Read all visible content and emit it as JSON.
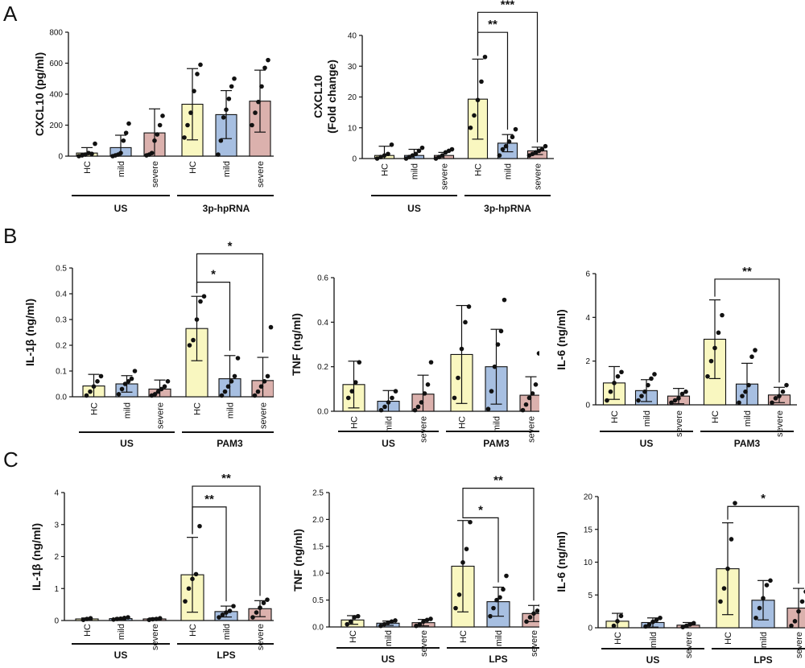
{
  "panel_letters": {
    "a": "A",
    "b": "B",
    "c": "C"
  },
  "colors": {
    "HC": "#f9f7c0",
    "mild": "#a7bfe1",
    "severe": "#dbb1ad",
    "ink": "#111111"
  },
  "chart_data": [
    {
      "type": "bar",
      "title": "",
      "xlabel": "",
      "ylabel": [
        "CXCL10 (pg/ml)"
      ],
      "ylim": [
        0,
        800
      ],
      "yticks": [
        0,
        200,
        400,
        600,
        800
      ],
      "ytick_labels": [
        "0",
        "200",
        "400",
        "600",
        "800"
      ],
      "grid": false,
      "legend": "none",
      "categories": [
        "HC",
        "mild",
        "severe",
        "HC",
        "mild",
        "severe"
      ],
      "groups": [
        "US",
        "3p-hpRNA"
      ],
      "values": [
        20,
        55,
        150,
        335,
        268,
        355
      ],
      "errors": [
        35,
        80,
        155,
        230,
        155,
        200
      ],
      "points": [
        [
          0,
          5,
          10,
          20,
          15,
          80
        ],
        [
          0,
          5,
          10,
          20,
          100,
          150,
          210
        ],
        [
          5,
          10,
          20,
          100,
          140,
          200,
          260
        ],
        [
          120,
          200,
          280,
          420,
          530,
          590
        ],
        [
          10,
          100,
          250,
          300,
          370,
          450,
          500
        ],
        [
          200,
          280,
          350,
          450,
          570,
          620
        ]
      ],
      "significance": []
    },
    {
      "type": "bar",
      "title": "",
      "xlabel": "",
      "ylabel": [
        "CXCL10",
        "(Fold change)"
      ],
      "ylim": [
        0,
        40
      ],
      "yticks": [
        0,
        10,
        20,
        30,
        40
      ],
      "ytick_labels": [
        "0",
        "10",
        "20",
        "30",
        "40"
      ],
      "grid": false,
      "legend": "none",
      "categories": [
        "HC",
        "mild",
        "severe",
        "HC",
        "mild",
        "severe"
      ],
      "groups": [
        "US",
        "3p-hpRNA"
      ],
      "values": [
        1,
        1,
        1,
        19.3,
        5,
        2.5
      ],
      "errors": [
        3,
        2,
        1,
        13,
        2.8,
        1.2
      ],
      "points": [
        [
          0,
          0.5,
          1,
          1.5,
          4.5
        ],
        [
          0,
          0.5,
          1,
          1.5,
          2.5,
          3.5
        ],
        [
          0,
          0.5,
          1,
          2,
          2.5,
          3
        ],
        [
          10,
          14,
          19,
          25,
          33
        ],
        [
          1,
          3,
          4,
          5.5,
          7,
          9.5
        ],
        [
          1,
          1.5,
          2,
          2.5,
          3,
          4
        ]
      ],
      "significance": [
        {
          "from": 3,
          "to": 4,
          "label": "**",
          "level": 41
        },
        {
          "from": 3,
          "to": 5,
          "label": "***",
          "level": 47.5
        }
      ]
    },
    {
      "type": "bar",
      "title": "",
      "xlabel": "",
      "ylabel": [
        "IL-1β (ng/ml)"
      ],
      "ylim": [
        0,
        0.5
      ],
      "yticks": [
        0,
        0.1,
        0.2,
        0.3,
        0.4,
        0.5
      ],
      "ytick_labels": [
        "0.0",
        "0.1",
        "0.2",
        "0.3",
        "0.4",
        "0.5"
      ],
      "grid": false,
      "legend": "none",
      "categories": [
        "HC",
        "mild",
        "severe",
        "HC",
        "mild",
        "severe"
      ],
      "groups": [
        "US",
        "PAM3"
      ],
      "values": [
        0.042,
        0.05,
        0.03,
        0.265,
        0.07,
        0.063
      ],
      "errors": [
        0.045,
        0.032,
        0.035,
        0.125,
        0.09,
        0.09
      ],
      "points": [
        [
          0.005,
          0.02,
          0.04,
          0.06,
          0.08
        ],
        [
          0.01,
          0.03,
          0.05,
          0.06,
          0.07,
          0.1
        ],
        [
          0.005,
          0.01,
          0.02,
          0.03,
          0.04,
          0.06
        ],
        [
          0.2,
          0.22,
          0.3,
          0.37,
          0.39
        ],
        [
          0.005,
          0.02,
          0.04,
          0.06,
          0.08,
          0.15
        ],
        [
          0.005,
          0.02,
          0.04,
          0.06,
          0.08,
          0.27
        ]
      ],
      "significance": [
        {
          "from": 3,
          "to": 4,
          "label": "*",
          "level": 0.445
        },
        {
          "from": 3,
          "to": 5,
          "label": "*",
          "level": 0.555
        }
      ]
    },
    {
      "type": "bar",
      "title": "",
      "xlabel": "",
      "ylabel": [
        "TNF (ng/ml)"
      ],
      "ylim": [
        0,
        0.6
      ],
      "yticks": [
        0,
        0.2,
        0.4,
        0.6
      ],
      "ytick_labels": [
        "0.0",
        "0.2",
        "0.4",
        "0.6"
      ],
      "grid": false,
      "legend": "none",
      "categories": [
        "HC",
        "mild",
        "severe",
        "HC",
        "mild",
        "severe"
      ],
      "groups": [
        "US",
        "PAM3"
      ],
      "values": [
        0.12,
        0.045,
        0.077,
        0.255,
        0.2,
        0.072
      ],
      "errors": [
        0.105,
        0.048,
        0.085,
        0.22,
        0.168,
        0.083
      ],
      "points": [
        [
          0.06,
          0.09,
          0.13,
          0.22
        ],
        [
          0.005,
          0.02,
          0.04,
          0.06,
          0.09
        ],
        [
          0.005,
          0.02,
          0.04,
          0.08,
          0.12,
          0.22
        ],
        [
          0.06,
          0.15,
          0.28,
          0.4,
          0.47
        ],
        [
          0.01,
          0.09,
          0.2,
          0.3,
          0.36,
          0.5
        ],
        [
          0.005,
          0.03,
          0.06,
          0.08,
          0.12,
          0.26
        ]
      ],
      "significance": []
    },
    {
      "type": "bar",
      "title": "",
      "xlabel": "",
      "ylabel": [
        "IL-6 (ng/ml)"
      ],
      "ylim": [
        0,
        6
      ],
      "yticks": [
        0,
        2,
        4,
        6
      ],
      "ytick_labels": [
        "0",
        "2",
        "4",
        "6"
      ],
      "grid": false,
      "legend": "none",
      "categories": [
        "HC",
        "mild",
        "severe",
        "HC",
        "mild",
        "severe"
      ],
      "groups": [
        "US",
        "PAM3"
      ],
      "values": [
        1,
        0.65,
        0.4,
        3,
        0.95,
        0.45
      ],
      "errors": [
        0.75,
        0.5,
        0.35,
        1.8,
        0.95,
        0.35
      ],
      "points": [
        [
          0.2,
          0.6,
          1,
          1.3,
          1.5
        ],
        [
          0.2,
          0.4,
          0.6,
          0.9,
          1.2,
          1.4
        ],
        [
          0.1,
          0.2,
          0.3,
          0.5,
          0.6
        ],
        [
          1.3,
          2,
          2.6,
          3.3,
          4.1
        ],
        [
          0.1,
          0.4,
          0.6,
          0.9,
          2.2,
          2.5
        ],
        [
          0.1,
          0.3,
          0.4,
          0.6,
          0.9
        ]
      ],
      "significance": [
        {
          "from": 3,
          "to": 5,
          "label": "**",
          "level": 5.75
        }
      ]
    },
    {
      "type": "bar",
      "title": "",
      "xlabel": "",
      "ylabel": [
        "IL-1β (ng/ml)"
      ],
      "ylim": [
        0,
        4
      ],
      "yticks": [
        0,
        1,
        2,
        3,
        4
      ],
      "ytick_labels": [
        "0",
        "1",
        "2",
        "3",
        "4"
      ],
      "grid": false,
      "legend": "none",
      "categories": [
        "HC",
        "mild",
        "severe",
        "HC",
        "mild",
        "severe"
      ],
      "groups": [
        "US",
        "LPS"
      ],
      "values": [
        0.05,
        0.06,
        0.05,
        1.43,
        0.28,
        0.37
      ],
      "errors": [
        0.03,
        0.03,
        0.03,
        1.17,
        0.17,
        0.25
      ],
      "points": [
        [
          0.02,
          0.05,
          0.07
        ],
        [
          0.03,
          0.05,
          0.06,
          0.08,
          0.1
        ],
        [
          0.02,
          0.04,
          0.05,
          0.07
        ],
        [
          0.6,
          1,
          1.3,
          1.45,
          2.95
        ],
        [
          0.1,
          0.18,
          0.25,
          0.3,
          0.45
        ],
        [
          0.1,
          0.25,
          0.4,
          0.55,
          0.65
        ]
      ],
      "significance": [
        {
          "from": 3,
          "to": 4,
          "label": "**",
          "level": 3.55
        },
        {
          "from": 3,
          "to": 5,
          "label": "**",
          "level": 4.2
        }
      ]
    },
    {
      "type": "bar",
      "title": "",
      "xlabel": "",
      "ylabel": [
        "TNF (ng/ml)"
      ],
      "ylim": [
        0,
        2.5
      ],
      "yticks": [
        0,
        0.5,
        1,
        1.5,
        2,
        2.5
      ],
      "ytick_labels": [
        "0.0",
        "0.5",
        "1.0",
        "1.5",
        "2.0",
        "2.5"
      ],
      "grid": false,
      "legend": "none",
      "categories": [
        "HC",
        "mild",
        "severe",
        "HC",
        "mild",
        "severe"
      ],
      "groups": [
        "US",
        "LPS"
      ],
      "values": [
        0.13,
        0.07,
        0.08,
        1.13,
        0.47,
        0.25
      ],
      "errors": [
        0.08,
        0.04,
        0.06,
        0.85,
        0.27,
        0.15
      ],
      "points": [
        [
          0.05,
          0.1,
          0.18,
          0.2
        ],
        [
          0.02,
          0.05,
          0.08,
          0.1,
          0.12
        ],
        [
          0.02,
          0.05,
          0.1,
          0.13,
          0.15
        ],
        [
          0.35,
          0.6,
          1.2,
          1.45,
          1.95
        ],
        [
          0.2,
          0.35,
          0.5,
          0.55,
          0.7,
          0.95
        ],
        [
          0.1,
          0.18,
          0.25,
          0.3,
          0.4
        ]
      ],
      "significance": [
        {
          "from": 3,
          "to": 4,
          "label": "*",
          "level": 2.03
        },
        {
          "from": 3,
          "to": 5,
          "label": "**",
          "level": 2.58
        }
      ]
    },
    {
      "type": "bar",
      "title": "",
      "xlabel": "",
      "ylabel": [
        "IL-6 (ng/ml)"
      ],
      "ylim": [
        0,
        20
      ],
      "yticks": [
        0,
        5,
        10,
        15,
        20
      ],
      "ytick_labels": [
        "0",
        "5",
        "10",
        "15",
        "20"
      ],
      "grid": false,
      "legend": "none",
      "categories": [
        "HC",
        "mild",
        "severe",
        "HC",
        "mild",
        "severe"
      ],
      "groups": [
        "US",
        "LPS"
      ],
      "values": [
        1,
        0.8,
        0.4,
        9,
        4.2,
        3
      ],
      "errors": [
        1.2,
        0.7,
        0.4,
        7,
        3,
        3
      ],
      "points": [
        [
          0.3,
          1,
          1.8
        ],
        [
          0.2,
          0.5,
          0.9,
          1.2,
          1.5
        ],
        [
          0.1,
          0.3,
          0.5,
          0.7
        ],
        [
          4,
          6,
          9,
          13.5,
          19
        ],
        [
          1.5,
          3,
          4.5,
          6.5,
          7.2
        ],
        [
          0.3,
          1,
          2.5,
          4,
          5.5
        ]
      ],
      "significance": [
        {
          "from": 3,
          "to": 5,
          "label": "*",
          "level": 18.5
        }
      ]
    }
  ]
}
